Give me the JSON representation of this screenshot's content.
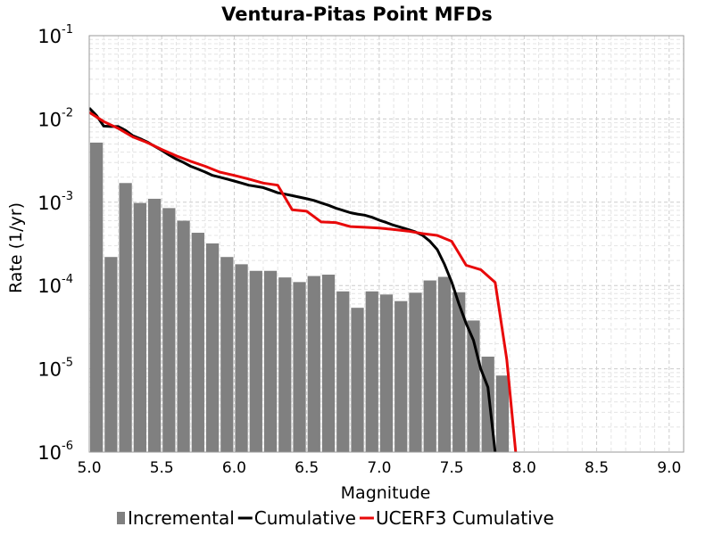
{
  "chart_data": {
    "type": "bar",
    "title": "Ventura-Pitas Point MFDs",
    "xlabel": "Magnitude",
    "ylabel": "Rate (1/yr)",
    "xlim": [
      5.0,
      9.1
    ],
    "ylim": [
      1e-06,
      0.1
    ],
    "y_scale": "log",
    "grid": true,
    "legend_position": "bottom",
    "x_ticks": [
      "5.0",
      "5.5",
      "6.0",
      "6.5",
      "7.0",
      "7.5",
      "8.0",
      "8.5",
      "9.0"
    ],
    "y_ticks": [
      {
        "base": "10",
        "exp": "-6"
      },
      {
        "base": "10",
        "exp": "-5"
      },
      {
        "base": "10",
        "exp": "-4"
      },
      {
        "base": "10",
        "exp": "-3"
      },
      {
        "base": "10",
        "exp": "-2"
      },
      {
        "base": "10",
        "exp": "-1"
      }
    ],
    "series": [
      {
        "name": "Incremental",
        "kind": "bar",
        "color": "#808080",
        "x": [
          5.05,
          5.15,
          5.25,
          5.35,
          5.45,
          5.55,
          5.65,
          5.75,
          5.85,
          5.95,
          6.05,
          6.15,
          6.25,
          6.35,
          6.45,
          6.55,
          6.65,
          6.75,
          6.85,
          6.95,
          7.05,
          7.15,
          7.25,
          7.35,
          7.45,
          7.55,
          7.65,
          7.75,
          7.85
        ],
        "values": [
          0.0052,
          0.00022,
          0.0017,
          0.00098,
          0.0011,
          0.00085,
          0.0006,
          0.00043,
          0.00032,
          0.00022,
          0.00018,
          0.00015,
          0.00015,
          0.000125,
          0.00011,
          0.00013,
          0.000135,
          8.5e-05,
          5.4e-05,
          8.5e-05,
          7.8e-05,
          6.5e-05,
          8.2e-05,
          0.000115,
          0.000127,
          8.3e-05,
          3.8e-05,
          1.4e-05,
          8.3e-06
        ]
      },
      {
        "name": "Cumulative",
        "kind": "line",
        "color": "#000000",
        "x": [
          5.0,
          5.05,
          5.1,
          5.15,
          5.2,
          5.25,
          5.3,
          5.35,
          5.4,
          5.45,
          5.5,
          5.55,
          5.6,
          5.65,
          5.7,
          5.75,
          5.8,
          5.85,
          5.9,
          5.95,
          6.0,
          6.05,
          6.1,
          6.15,
          6.2,
          6.25,
          6.3,
          6.35,
          6.4,
          6.45,
          6.5,
          6.55,
          6.6,
          6.65,
          6.7,
          6.75,
          6.8,
          6.85,
          6.9,
          6.95,
          7.0,
          7.05,
          7.1,
          7.15,
          7.2,
          7.25,
          7.3,
          7.35,
          7.4,
          7.45,
          7.5,
          7.55,
          7.6,
          7.65,
          7.7,
          7.75,
          7.8,
          7.82
        ],
        "values": [
          0.0135,
          0.011,
          0.0082,
          0.0081,
          0.0081,
          0.0073,
          0.0063,
          0.0058,
          0.0053,
          0.0047,
          0.0042,
          0.0037,
          0.0033,
          0.003,
          0.0027,
          0.0025,
          0.0023,
          0.0021,
          0.002,
          0.0019,
          0.0018,
          0.0017,
          0.0016,
          0.00155,
          0.0015,
          0.0014,
          0.0013,
          0.00125,
          0.0012,
          0.00115,
          0.0011,
          0.00105,
          0.00098,
          0.00092,
          0.00085,
          0.0008,
          0.00075,
          0.00072,
          0.0007,
          0.00066,
          0.00061,
          0.00057,
          0.00053,
          0.0005,
          0.00047,
          0.00044,
          0.0004,
          0.00034,
          0.00027,
          0.00018,
          0.00011,
          6e-05,
          3.5e-05,
          2.2e-05,
          1e-05,
          6e-06,
          1e-06,
          1e-07
        ]
      },
      {
        "name": "UCERF3 Cumulative",
        "kind": "line",
        "color": "#e8090a",
        "x": [
          5.0,
          5.1,
          5.2,
          5.3,
          5.4,
          5.5,
          5.6,
          5.7,
          5.8,
          5.9,
          6.0,
          6.1,
          6.2,
          6.3,
          6.4,
          6.5,
          6.6,
          6.7,
          6.8,
          6.9,
          7.0,
          7.1,
          7.2,
          7.3,
          7.4,
          7.5,
          7.6,
          7.7,
          7.8,
          7.88,
          7.95
        ],
        "values": [
          0.012,
          0.0093,
          0.0077,
          0.0061,
          0.0052,
          0.0043,
          0.0036,
          0.0031,
          0.0027,
          0.0023,
          0.0021,
          0.0019,
          0.0017,
          0.0016,
          0.00081,
          0.00078,
          0.00058,
          0.00057,
          0.00051,
          0.0005,
          0.00049,
          0.00047,
          0.00045,
          0.00042,
          0.0004,
          0.00034,
          0.000175,
          0.000155,
          0.000109,
          1.3e-05,
          7e-07
        ]
      }
    ]
  },
  "legend": {
    "items": [
      {
        "label": "Incremental",
        "color": "#808080",
        "kind": "bar"
      },
      {
        "label": "Cumulative",
        "color": "#000000",
        "kind": "line"
      },
      {
        "label": "UCERF3 Cumulative",
        "color": "#e8090a",
        "kind": "line"
      }
    ]
  }
}
